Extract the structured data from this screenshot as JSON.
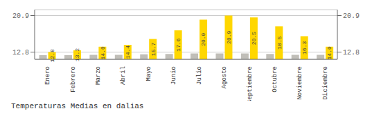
{
  "chart_data": {
    "type": "bar",
    "title": "Temperaturas Medias en dalias",
    "categories": [
      "Enero",
      "Febrero",
      "Marzo",
      "Abril",
      "Mayo",
      "Junio",
      "Julio",
      "Agosto",
      "Septiembre",
      "Octubre",
      "Noviembre",
      "Diciembre"
    ],
    "series": [
      {
        "color": "#C0BEB8",
        "values": [
          12.1,
          12.1,
          12.2,
          12.2,
          12.3,
          12.4,
          12.5,
          12.5,
          12.5,
          12.4,
          12.2,
          12.2
        ]
      },
      {
        "color": "#FFD700",
        "values": [
          12.8,
          13.2,
          14.0,
          14.4,
          15.7,
          17.6,
          20.0,
          20.9,
          20.5,
          18.5,
          16.3,
          14.0
        ],
        "value_labels": [
          "12.8",
          "13.2",
          "14.0",
          "14.4",
          "15.7",
          "17.6",
          "20.0",
          "20.9",
          "20.5",
          "18.5",
          "16.3",
          "14.0"
        ],
        "data_labels": true
      }
    ],
    "ylim": [
      11.2,
      22.2
    ],
    "yticks": [
      12.8,
      20.9
    ],
    "y2lim": [
      11.2,
      22.2
    ],
    "y2ticks": [
      12.8,
      20.9
    ],
    "grid": true
  }
}
